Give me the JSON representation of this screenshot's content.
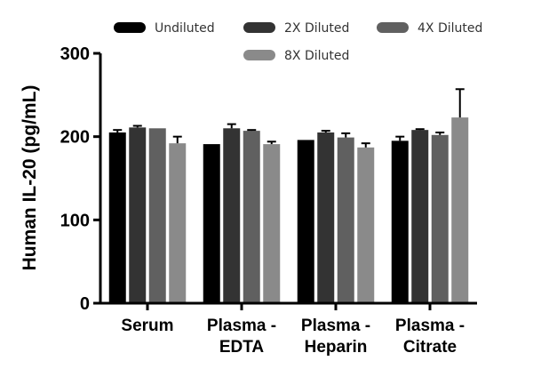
{
  "chart_data": {
    "type": "bar",
    "title": "",
    "xlabel": "",
    "ylabel": "Human IL-20 (pg/mL)",
    "ylim": [
      0,
      300
    ],
    "yticks": [
      0,
      100,
      200,
      300
    ],
    "categories": [
      [
        "Serum"
      ],
      [
        "Plasma -",
        "EDTA"
      ],
      [
        "Plasma -",
        "Heparin"
      ],
      [
        "Plasma -",
        "Citrate"
      ]
    ],
    "series": [
      {
        "name": "Undiluted",
        "color": "#000000",
        "values": [
          205,
          191,
          196,
          195
        ],
        "errors": [
          3,
          0,
          0,
          5
        ]
      },
      {
        "name": "2X Diluted",
        "color": "#333333",
        "values": [
          211,
          210,
          205,
          208
        ],
        "errors": [
          2,
          5,
          2,
          1
        ]
      },
      {
        "name": "4X Diluted",
        "color": "#606060",
        "values": [
          210,
          207,
          199,
          202
        ],
        "errors": [
          0,
          1,
          5,
          3
        ]
      },
      {
        "name": "8X Diluted",
        "color": "#8a8a8a",
        "values": [
          192,
          191,
          187,
          223
        ],
        "errors": [
          8,
          3,
          5,
          34
        ]
      }
    ],
    "legend_position": "top"
  }
}
